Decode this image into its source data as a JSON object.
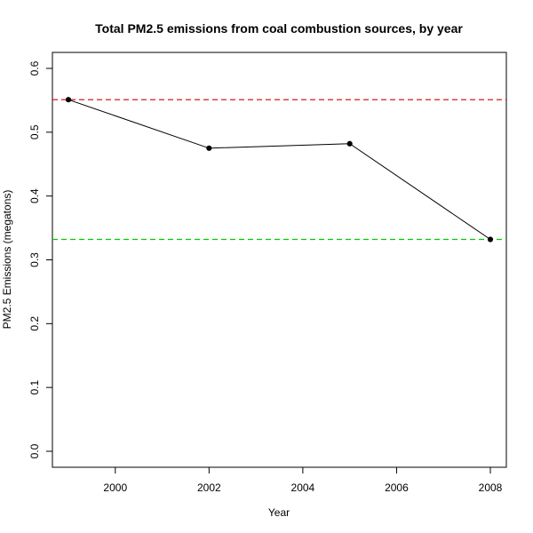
{
  "chart_data": {
    "type": "line",
    "title": "Total PM2.5 emissions from coal combustion sources, by year",
    "xlabel": "Year",
    "ylabel": "PM2.5 Emissions (megatons)",
    "x": [
      1999,
      2002,
      2005,
      2008
    ],
    "values": [
      0.551,
      0.475,
      0.482,
      0.332
    ],
    "xlim": [
      1999,
      2008
    ],
    "ylim": [
      0,
      0.6
    ],
    "x_ticks": [
      2000,
      2002,
      2004,
      2006,
      2008
    ],
    "y_ticks": [
      "0.0",
      "0.1",
      "0.2",
      "0.3",
      "0.4",
      "0.5",
      "0.6"
    ],
    "reference_lines": [
      {
        "y": 0.551,
        "color": "#cc0000",
        "style": "dashed"
      },
      {
        "y": 0.332,
        "color": "#00cc00",
        "style": "dashed"
      }
    ],
    "series_color": "#000000",
    "grid": false,
    "legend": "none"
  }
}
